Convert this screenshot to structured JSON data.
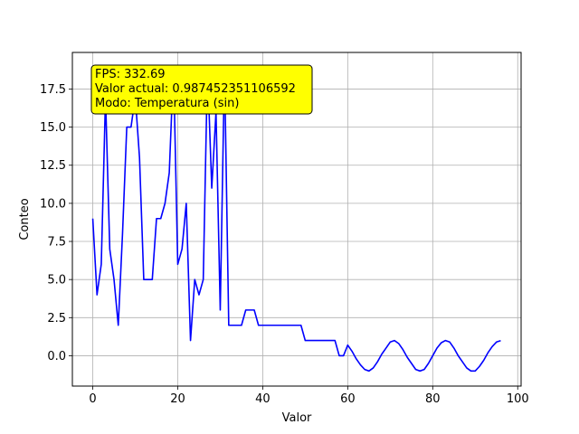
{
  "chart_data": {
    "type": "line",
    "xlabel": "Valor",
    "ylabel": "Conteo",
    "xlim": [
      -4.8,
      100.8
    ],
    "ylim": [
      -1.99,
      19.9
    ],
    "grid": true,
    "x_ticks": [
      0,
      20,
      40,
      60,
      80,
      100
    ],
    "x_tick_labels": [
      "0",
      "20",
      "40",
      "60",
      "80",
      "100"
    ],
    "y_ticks": [
      0,
      2.5,
      5,
      7.5,
      10,
      12.5,
      15,
      17.5
    ],
    "y_tick_labels": [
      "0.0",
      "2.5",
      "5.0",
      "7.5",
      "10.0",
      "12.5",
      "15.0",
      "17.5"
    ],
    "series": [
      {
        "color": "#0000ff",
        "x": [
          0,
          1,
          2,
          3,
          4,
          5,
          6,
          7,
          8,
          9,
          10,
          11,
          12,
          13,
          14,
          15,
          16,
          17,
          18,
          19,
          20,
          21,
          22,
          23,
          24,
          25,
          26,
          27,
          28,
          29,
          30,
          31,
          32,
          33,
          34,
          35,
          36,
          37,
          38,
          39,
          40,
          41,
          42,
          43,
          44,
          45,
          46,
          47,
          48,
          49,
          50,
          51,
          52,
          53,
          54,
          55,
          56,
          57,
          58,
          59,
          60,
          61,
          62,
          63,
          64,
          65,
          66,
          67,
          68,
          69,
          70,
          71,
          72,
          73,
          74,
          75,
          76,
          77,
          78,
          79,
          80,
          81,
          82,
          83,
          84,
          85,
          86,
          87,
          88,
          89,
          90,
          91,
          92,
          93,
          94,
          95,
          96
        ],
        "y": [
          9,
          4,
          6,
          17,
          7,
          5,
          2,
          8,
          15,
          15,
          17,
          13,
          5,
          5,
          5,
          9,
          9,
          10,
          12,
          19,
          6,
          7,
          10,
          1,
          5,
          4,
          5,
          19,
          11,
          16,
          3,
          19,
          2,
          2,
          2,
          2,
          3,
          3,
          3,
          2,
          2,
          2,
          2,
          2,
          2,
          2,
          2,
          2,
          2,
          2,
          1,
          1,
          1,
          1,
          1,
          1,
          1,
          1,
          0,
          0,
          0.7,
          0.3,
          -0.2,
          -0.6,
          -0.9,
          -1.0,
          -0.8,
          -0.4,
          0.1,
          0.5,
          0.9,
          1.0,
          0.8,
          0.4,
          -0.1,
          -0.5,
          -0.9,
          -1.0,
          -0.9,
          -0.5,
          0.0,
          0.5,
          0.85,
          1.0,
          0.9,
          0.5,
          0.0,
          -0.4,
          -0.8,
          -1.0,
          -1.0,
          -0.7,
          -0.3,
          0.2,
          0.6,
          0.9,
          0.99
        ]
      }
    ],
    "annotation": {
      "lines": [
        "FPS: 332.69",
        "Valor actual: 0.987452351106592",
        "Modo: Temperatura (sin)"
      ],
      "background": "#ffff00"
    }
  }
}
